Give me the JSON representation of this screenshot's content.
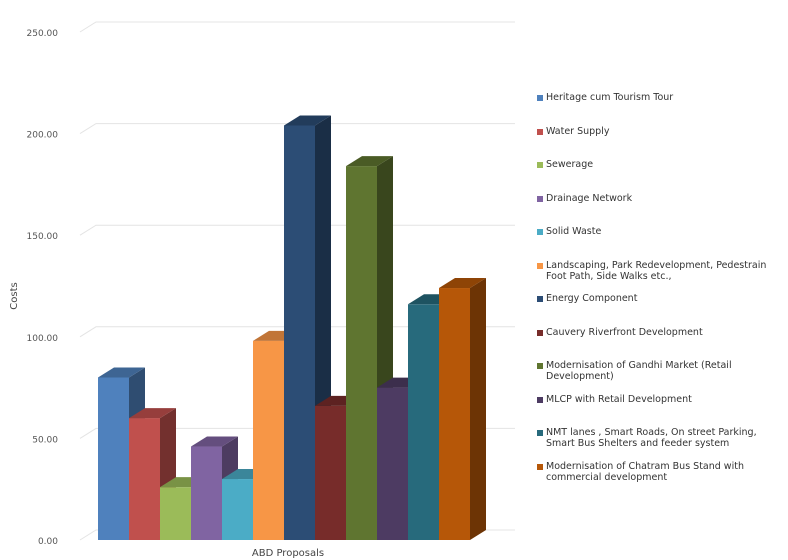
{
  "chart_data": {
    "type": "bar",
    "xlabel": "ABD Proposals",
    "ylabel": "Costs",
    "ylim": [
      0,
      250
    ],
    "yticks": [
      "0.00",
      "50.00",
      "100.00",
      "150.00",
      "200.00",
      "250.00"
    ],
    "ytick_values": [
      0,
      50,
      100,
      150,
      200,
      250
    ],
    "grid": true,
    "legend_position": "right",
    "series": [
      {
        "name": "Heritage cum Tourism Tour",
        "value": 80,
        "color": "#4F81BD"
      },
      {
        "name": "Water Supply",
        "value": 60,
        "color": "#C0504D"
      },
      {
        "name": "Sewerage",
        "value": 26,
        "color": "#9BBB59"
      },
      {
        "name": "Drainage Network",
        "value": 46,
        "color": "#8064A2"
      },
      {
        "name": "Solid Waste",
        "value": 30,
        "color": "#4BACC6"
      },
      {
        "name": "Landscaping, Park Redevelopment, Pedestrain Foot Path, Side Walks etc.,",
        "value": 98,
        "color": "#F79646"
      },
      {
        "name": "Energy Component",
        "value": 204,
        "color": "#2C4D75"
      },
      {
        "name": "Cauvery Riverfront Development",
        "value": 66,
        "color": "#772C2A"
      },
      {
        "name": "Modernisation of Gandhi Market (Retail Development)",
        "value": 184,
        "color": "#5F7530"
      },
      {
        "name": "MLCP  with Retail Development",
        "value": 75,
        "color": "#4D3B62"
      },
      {
        "name": "NMT lanes , Smart Roads, On street Parking, Smart Bus Shelters and feeder system",
        "value": 116,
        "color": "#276A7C"
      },
      {
        "name": "Modernisation of Chatram Bus Stand with commercial development",
        "value": 124,
        "color": "#B65708"
      }
    ]
  }
}
